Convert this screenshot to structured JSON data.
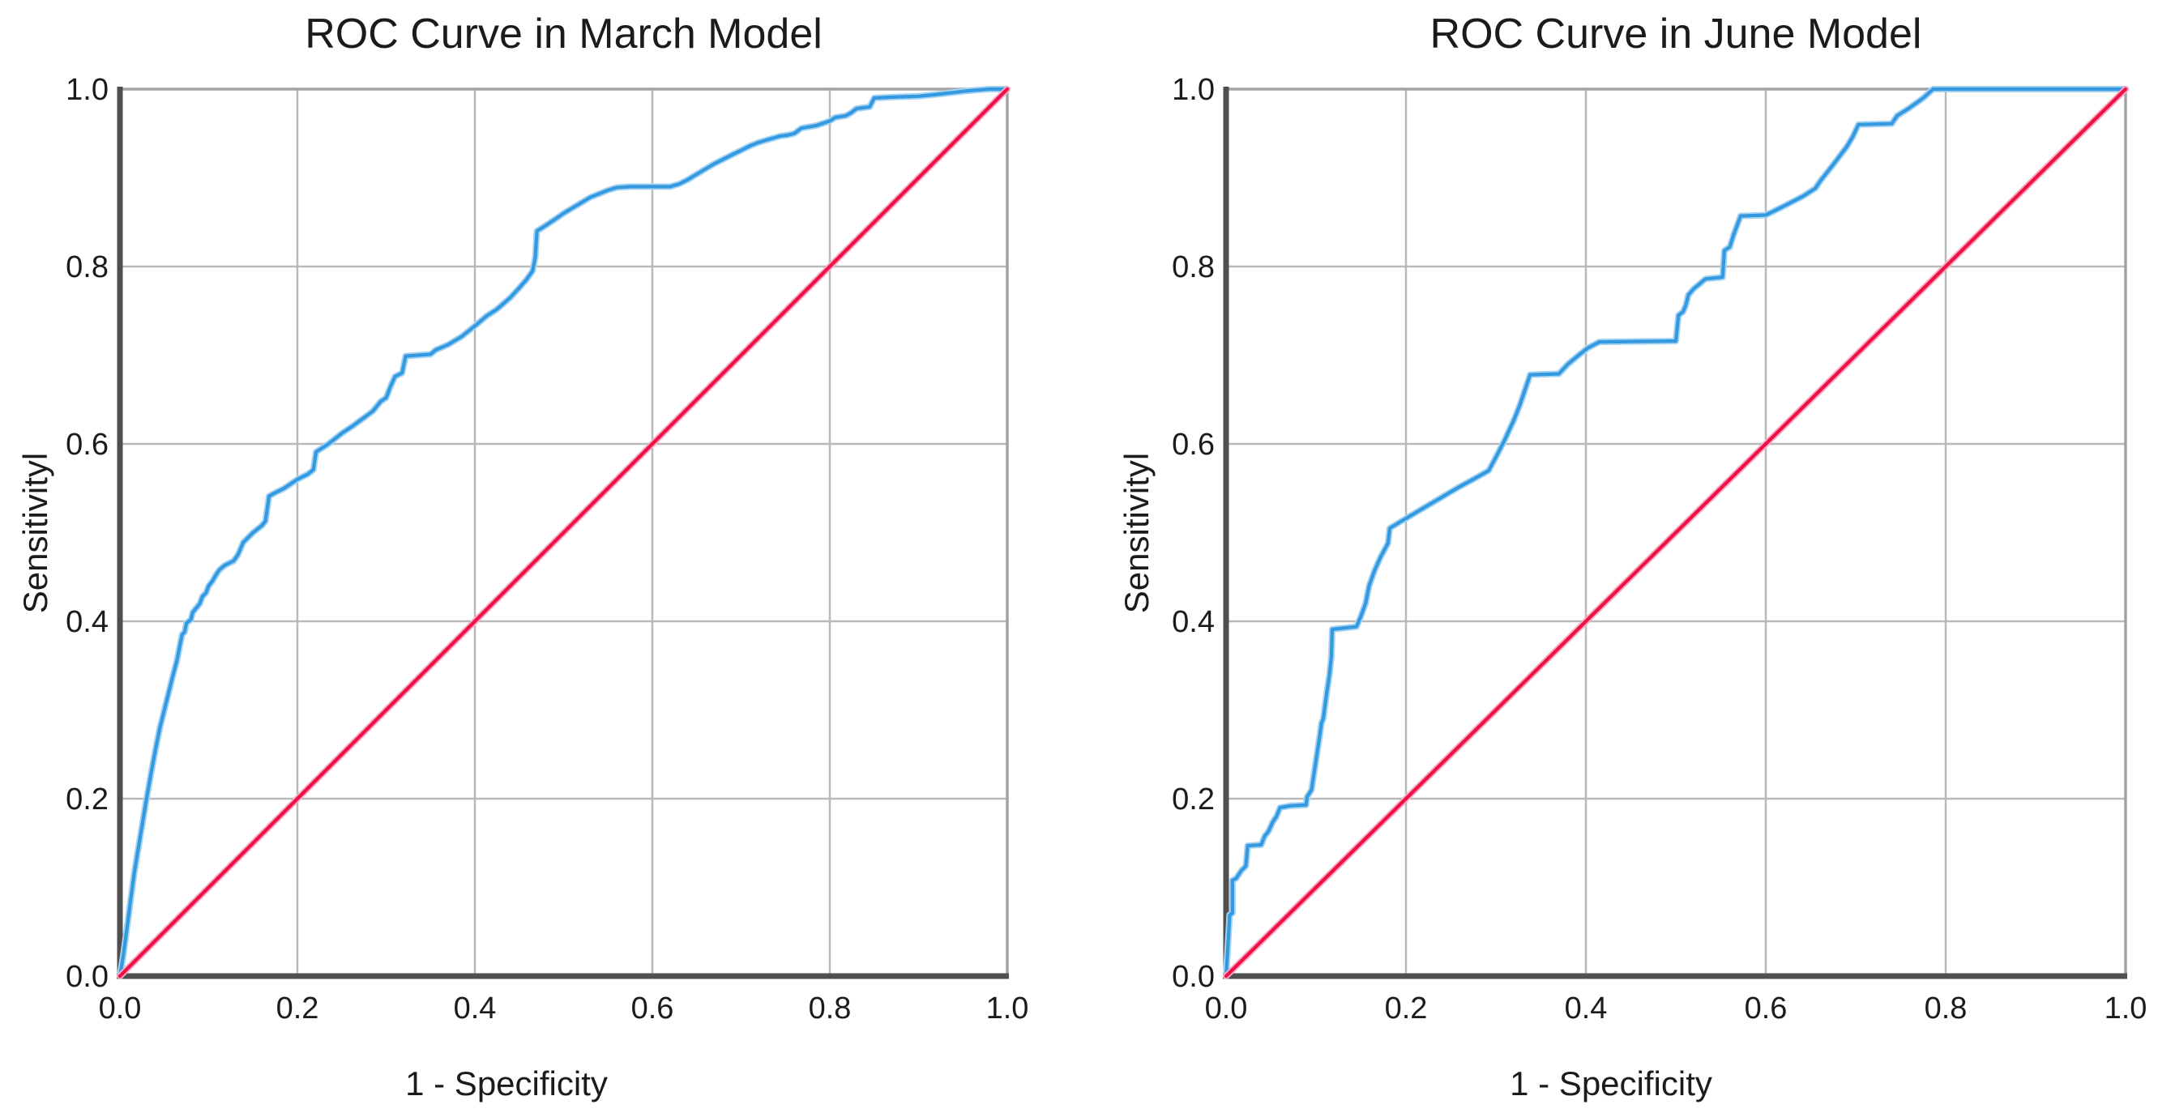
{
  "palette": {
    "background": "#ffffff",
    "roc_curve_blue": "#3399e0",
    "roc_curve_halo": "#a6d3f2",
    "reference_red": "#ee1146",
    "reference_halo": "#f8a8c0",
    "gridline": "#b9b9b9",
    "axis_dark": "#4f4f4f",
    "box_light": "#a3a3a3",
    "text": "#1b1b1b"
  },
  "chart_data": [
    {
      "type": "line",
      "title": "ROC Curve in March Model",
      "xlabel": "1 - Specificity",
      "ylabel": "Sensitivityl",
      "xlim": [
        0,
        1
      ],
      "ylim": [
        0,
        1
      ],
      "grid": true,
      "legend": "none",
      "xticks": [
        "0.0",
        "0.2",
        "0.4",
        "0.6",
        "0.8",
        "1.0"
      ],
      "yticks": [
        "0.0",
        "0.2",
        "0.4",
        "0.6",
        "0.8",
        "1.0"
      ],
      "series": [
        {
          "name": "ROC curve",
          "role": "roc",
          "points": [
            [
              0,
              0
            ],
            [
              0.004,
              0.025
            ],
            [
              0.008,
              0.055
            ],
            [
              0.012,
              0.085
            ],
            [
              0.016,
              0.115
            ],
            [
              0.02,
              0.14
            ],
            [
              0.025,
              0.17
            ],
            [
              0.03,
              0.2
            ],
            [
              0.035,
              0.228
            ],
            [
              0.04,
              0.255
            ],
            [
              0.045,
              0.28
            ],
            [
              0.05,
              0.3
            ],
            [
              0.055,
              0.32
            ],
            [
              0.06,
              0.34
            ],
            [
              0.064,
              0.355
            ],
            [
              0.068,
              0.375
            ],
            [
              0.07,
              0.385
            ],
            [
              0.073,
              0.388
            ],
            [
              0.075,
              0.398
            ],
            [
              0.08,
              0.402
            ],
            [
              0.082,
              0.41
            ],
            [
              0.086,
              0.415
            ],
            [
              0.09,
              0.42
            ],
            [
              0.093,
              0.428
            ],
            [
              0.097,
              0.432
            ],
            [
              0.1,
              0.44
            ],
            [
              0.104,
              0.445
            ],
            [
              0.108,
              0.452
            ],
            [
              0.112,
              0.458
            ],
            [
              0.118,
              0.463
            ],
            [
              0.128,
              0.468
            ],
            [
              0.133,
              0.475
            ],
            [
              0.139,
              0.489
            ],
            [
              0.15,
              0.5
            ],
            [
              0.16,
              0.508
            ],
            [
              0.164,
              0.513
            ],
            [
              0.168,
              0.541
            ],
            [
              0.175,
              0.545
            ],
            [
              0.185,
              0.55
            ],
            [
              0.2,
              0.56
            ],
            [
              0.212,
              0.566
            ],
            [
              0.218,
              0.571
            ],
            [
              0.221,
              0.591
            ],
            [
              0.235,
              0.6
            ],
            [
              0.25,
              0.612
            ],
            [
              0.262,
              0.62
            ],
            [
              0.273,
              0.628
            ],
            [
              0.285,
              0.637
            ],
            [
              0.294,
              0.648
            ],
            [
              0.3,
              0.652
            ],
            [
              0.305,
              0.665
            ],
            [
              0.31,
              0.676
            ],
            [
              0.318,
              0.68
            ],
            [
              0.322,
              0.699
            ],
            [
              0.35,
              0.701
            ],
            [
              0.356,
              0.706
            ],
            [
              0.37,
              0.712
            ],
            [
              0.385,
              0.721
            ],
            [
              0.4,
              0.733
            ],
            [
              0.413,
              0.744
            ],
            [
              0.425,
              0.752
            ],
            [
              0.44,
              0.765
            ],
            [
              0.45,
              0.776
            ],
            [
              0.458,
              0.785
            ],
            [
              0.465,
              0.795
            ],
            [
              0.468,
              0.81
            ],
            [
              0.47,
              0.84
            ],
            [
              0.478,
              0.845
            ],
            [
              0.49,
              0.853
            ],
            [
              0.5,
              0.86
            ],
            [
              0.51,
              0.866
            ],
            [
              0.52,
              0.872
            ],
            [
              0.53,
              0.878
            ],
            [
              0.54,
              0.882
            ],
            [
              0.55,
              0.886
            ],
            [
              0.56,
              0.889
            ],
            [
              0.575,
              0.89
            ],
            [
              0.62,
              0.89
            ],
            [
              0.63,
              0.893
            ],
            [
              0.64,
              0.898
            ],
            [
              0.65,
              0.904
            ],
            [
              0.66,
              0.91
            ],
            [
              0.67,
              0.916
            ],
            [
              0.68,
              0.921
            ],
            [
              0.69,
              0.926
            ],
            [
              0.7,
              0.931
            ],
            [
              0.71,
              0.936
            ],
            [
              0.72,
              0.94
            ],
            [
              0.73,
              0.943
            ],
            [
              0.744,
              0.947
            ],
            [
              0.752,
              0.948
            ],
            [
              0.76,
              0.95
            ],
            [
              0.768,
              0.956
            ],
            [
              0.785,
              0.959
            ],
            [
              0.8,
              0.964
            ],
            [
              0.806,
              0.968
            ],
            [
              0.818,
              0.97
            ],
            [
              0.825,
              0.974
            ],
            [
              0.83,
              0.978
            ],
            [
              0.845,
              0.98
            ],
            [
              0.85,
              0.99
            ],
            [
              0.87,
              0.991
            ],
            [
              0.9,
              0.992
            ],
            [
              0.92,
              0.994
            ],
            [
              0.955,
              0.998
            ],
            [
              0.98,
              1
            ],
            [
              1,
              1
            ]
          ]
        },
        {
          "name": "Reference line",
          "role": "reference",
          "points": [
            [
              0,
              0
            ],
            [
              1,
              1
            ]
          ]
        }
      ]
    },
    {
      "type": "line",
      "title": "ROC Curve in June Model",
      "xlabel": "1 - Specificity",
      "ylabel": "Sensitivityl",
      "xlim": [
        0,
        1
      ],
      "ylim": [
        0,
        1
      ],
      "grid": true,
      "legend": "none",
      "xticks": [
        "0.0",
        "0.2",
        "0.4",
        "0.6",
        "0.8",
        "1.0"
      ],
      "yticks": [
        "0.0",
        "0.2",
        "0.4",
        "0.6",
        "0.8",
        "1.0"
      ],
      "series": [
        {
          "name": "ROC curve",
          "role": "roc",
          "points": [
            [
              0,
              0
            ],
            [
              0.003,
              0.05
            ],
            [
              0.004,
              0.069
            ],
            [
              0.007,
              0.071
            ],
            [
              0.007,
              0.108
            ],
            [
              0.011,
              0.11
            ],
            [
              0.017,
              0.119
            ],
            [
              0.022,
              0.124
            ],
            [
              0.023,
              0.135
            ],
            [
              0.024,
              0.147
            ],
            [
              0.039,
              0.148
            ],
            [
              0.043,
              0.158
            ],
            [
              0.047,
              0.163
            ],
            [
              0.052,
              0.174
            ],
            [
              0.056,
              0.18
            ],
            [
              0.06,
              0.19
            ],
            [
              0.071,
              0.192
            ],
            [
              0.089,
              0.193
            ],
            [
              0.09,
              0.202
            ],
            [
              0.095,
              0.21
            ],
            [
              0.098,
              0.23
            ],
            [
              0.101,
              0.25
            ],
            [
              0.104,
              0.27
            ],
            [
              0.106,
              0.285
            ],
            [
              0.108,
              0.29
            ],
            [
              0.11,
              0.305
            ],
            [
              0.112,
              0.32
            ],
            [
              0.115,
              0.34
            ],
            [
              0.117,
              0.36
            ],
            [
              0.118,
              0.391
            ],
            [
              0.145,
              0.394
            ],
            [
              0.15,
              0.406
            ],
            [
              0.155,
              0.42
            ],
            [
              0.159,
              0.44
            ],
            [
              0.165,
              0.457
            ],
            [
              0.172,
              0.473
            ],
            [
              0.18,
              0.488
            ],
            [
              0.182,
              0.505
            ],
            [
              0.2,
              0.516
            ],
            [
              0.22,
              0.528
            ],
            [
              0.24,
              0.54
            ],
            [
              0.26,
              0.552
            ],
            [
              0.28,
              0.563
            ],
            [
              0.292,
              0.57
            ],
            [
              0.3,
              0.585
            ],
            [
              0.31,
              0.605
            ],
            [
              0.32,
              0.627
            ],
            [
              0.327,
              0.645
            ],
            [
              0.333,
              0.663
            ],
            [
              0.338,
              0.678
            ],
            [
              0.37,
              0.679
            ],
            [
              0.38,
              0.69
            ],
            [
              0.392,
              0.7
            ],
            [
              0.402,
              0.708
            ],
            [
              0.415,
              0.715
            ],
            [
              0.5,
              0.716
            ],
            [
              0.503,
              0.745
            ],
            [
              0.508,
              0.749
            ],
            [
              0.511,
              0.756
            ],
            [
              0.514,
              0.768
            ],
            [
              0.52,
              0.775
            ],
            [
              0.533,
              0.786
            ],
            [
              0.552,
              0.788
            ],
            [
              0.554,
              0.818
            ],
            [
              0.56,
              0.822
            ],
            [
              0.564,
              0.835
            ],
            [
              0.568,
              0.846
            ],
            [
              0.572,
              0.857
            ],
            [
              0.6,
              0.858
            ],
            [
              0.62,
              0.868
            ],
            [
              0.641,
              0.879
            ],
            [
              0.655,
              0.888
            ],
            [
              0.661,
              0.897
            ],
            [
              0.675,
              0.915
            ],
            [
              0.69,
              0.935
            ],
            [
              0.697,
              0.947
            ],
            [
              0.703,
              0.96
            ],
            [
              0.74,
              0.961
            ],
            [
              0.746,
              0.97
            ],
            [
              0.76,
              0.979
            ],
            [
              0.775,
              0.99
            ],
            [
              0.786,
              1
            ],
            [
              1,
              1
            ]
          ]
        },
        {
          "name": "Reference line",
          "role": "reference",
          "points": [
            [
              0,
              0
            ],
            [
              1,
              1
            ]
          ]
        }
      ]
    }
  ]
}
